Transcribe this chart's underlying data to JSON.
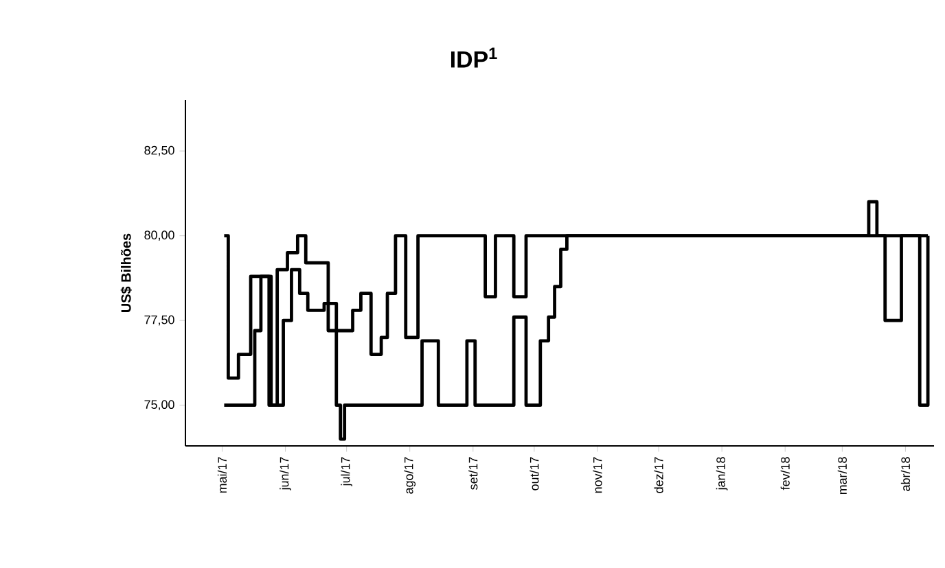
{
  "chart_data": {
    "type": "step",
    "title": "IDP$^{1}$",
    "ylabel": "US$ Bilhões",
    "xlim": [
      "2017-04-13",
      "2018-04-15"
    ],
    "ylim": [
      73.8,
      84
    ],
    "xticks": [
      {
        "value": "2017-05",
        "label": "mai/17"
      },
      {
        "value": "2017-06",
        "label": "jun/17"
      },
      {
        "value": "2017-07",
        "label": "jul/17"
      },
      {
        "value": "2017-08",
        "label": "ago/17"
      },
      {
        "value": "2017-09",
        "label": "set/17"
      },
      {
        "value": "2017-10",
        "label": "out/17"
      },
      {
        "value": "2017-11",
        "label": "nov/17"
      },
      {
        "value": "2017-12",
        "label": "dez/17"
      },
      {
        "value": "2018-01",
        "label": "jan/18"
      },
      {
        "value": "2018-02",
        "label": "fev/18"
      },
      {
        "value": "2018-03",
        "label": "mar/18"
      },
      {
        "value": "2018-04",
        "label": "abr/18"
      }
    ],
    "yticks": [
      {
        "value": 75,
        "label": "75,00"
      },
      {
        "value": 77.5,
        "label": "77,50"
      },
      {
        "value": 80,
        "label": "80,00"
      },
      {
        "value": 82.5,
        "label": "82,50"
      }
    ],
    "marker": "none",
    "line_style": "solid",
    "series": [
      {
        "color": "#000000",
        "x": [
          "2017-05-02",
          "2017-05-04",
          "2017-05-09",
          "2017-05-15",
          "2017-05-24",
          "2017-05-28",
          "2017-06-02",
          "2017-06-07",
          "2017-06-11",
          "2017-06-22",
          "2017-07-04",
          "2017-07-08",
          "2017-07-13",
          "2017-07-18",
          "2017-07-21",
          "2017-07-25",
          "2017-07-30",
          "2017-08-05",
          "2017-09-07",
          "2017-09-12",
          "2017-09-21",
          "2017-09-27",
          "2018-03-14",
          "2018-03-18",
          "2018-03-22",
          "2018-03-30",
          "2018-04-08",
          "2018-04-12"
        ],
        "values": [
          80,
          75.8,
          76.5,
          78.8,
          75,
          79,
          79.5,
          80,
          79.2,
          77.2,
          77.8,
          78.3,
          76.5,
          77,
          78.3,
          80,
          77,
          80,
          78.2,
          80,
          78.2,
          80,
          81,
          80,
          77.5,
          80,
          75,
          80
        ]
      },
      {
        "color": "#000000",
        "x": [
          "2017-05-02",
          "2017-05-17",
          "2017-05-20",
          "2017-05-25",
          "2017-05-31",
          "2017-06-04",
          "2017-06-08",
          "2017-06-12",
          "2017-06-20",
          "2017-06-26",
          "2017-06-28",
          "2017-06-30",
          "2017-08-07",
          "2017-08-15",
          "2017-08-29",
          "2017-09-02",
          "2017-09-21",
          "2017-09-27",
          "2017-10-04",
          "2017-10-08",
          "2017-10-11",
          "2017-10-14",
          "2017-10-17",
          "2018-04-12"
        ],
        "values": [
          75,
          77.2,
          78.8,
          75,
          77.5,
          79,
          78.3,
          77.8,
          78,
          75,
          74,
          75,
          76.9,
          75,
          76.9,
          75,
          77.6,
          75,
          76.9,
          77.6,
          78.5,
          79.6,
          80,
          80
        ]
      }
    ]
  }
}
